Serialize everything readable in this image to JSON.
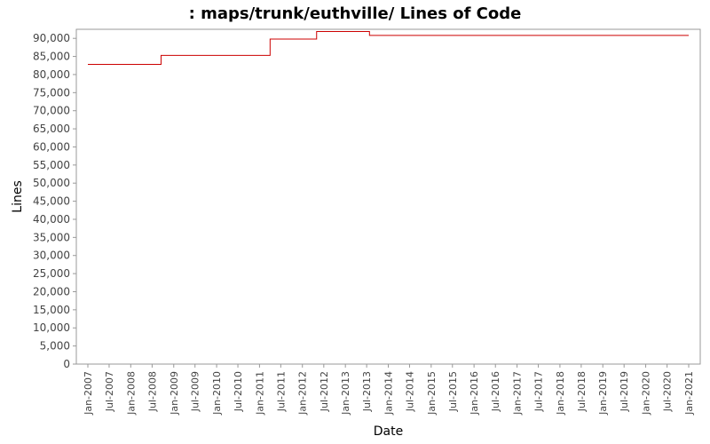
{
  "chart_data": {
    "type": "line",
    "title": ": maps/trunk/euthville/ Lines of Code",
    "xlabel": "Date",
    "ylabel": "Lines",
    "xlim": [
      "2007-01-01",
      "2021-01-01"
    ],
    "ylim": [
      0,
      92500
    ],
    "y_ticks": [
      0,
      5000,
      10000,
      15000,
      20000,
      25000,
      30000,
      35000,
      40000,
      45000,
      50000,
      55000,
      60000,
      65000,
      70000,
      75000,
      80000,
      85000,
      90000
    ],
    "y_tick_labels": [
      "0",
      "5,000",
      "10,000",
      "15,000",
      "20,000",
      "25,000",
      "30,000",
      "35,000",
      "40,000",
      "45,000",
      "50,000",
      "55,000",
      "60,000",
      "65,000",
      "70,000",
      "75,000",
      "80,000",
      "85,000",
      "90,000"
    ],
    "x_ticks": [
      "2007-01-01",
      "2007-07-01",
      "2008-01-01",
      "2008-07-01",
      "2009-01-01",
      "2009-07-01",
      "2010-01-01",
      "2010-07-01",
      "2011-01-01",
      "2011-07-01",
      "2012-01-01",
      "2012-07-01",
      "2013-01-01",
      "2013-07-01",
      "2014-01-01",
      "2014-07-01",
      "2015-01-01",
      "2015-07-01",
      "2016-01-01",
      "2016-07-01",
      "2017-01-01",
      "2017-07-01",
      "2018-01-01",
      "2018-07-01",
      "2019-01-01",
      "2019-07-01",
      "2020-01-01",
      "2020-07-01",
      "2021-01-01"
    ],
    "x_tick_labels": [
      "Jan-2007",
      "Jul-2007",
      "Jan-2008",
      "Jul-2008",
      "Jan-2009",
      "Jul-2009",
      "Jan-2010",
      "Jul-2010",
      "Jan-2011",
      "Jul-2011",
      "Jan-2012",
      "Jul-2012",
      "Jan-2013",
      "Jul-2013",
      "Jan-2014",
      "Jul-2014",
      "Jan-2015",
      "Jul-2015",
      "Jan-2016",
      "Jul-2016",
      "Jan-2017",
      "Jul-2017",
      "Jan-2018",
      "Jul-2018",
      "Jan-2019",
      "Jul-2019",
      "Jan-2020",
      "Jul-2020",
      "Jan-2021"
    ],
    "grid": false,
    "step": true,
    "series": [
      {
        "color": "#cc0000",
        "x": [
          "2007-01-01",
          "2008-09-15",
          "2011-04-01",
          "2012-05-01",
          "2013-07-25",
          "2021-01-01"
        ],
        "y": [
          82800,
          85300,
          89800,
          91900,
          90800,
          90800
        ]
      }
    ]
  }
}
